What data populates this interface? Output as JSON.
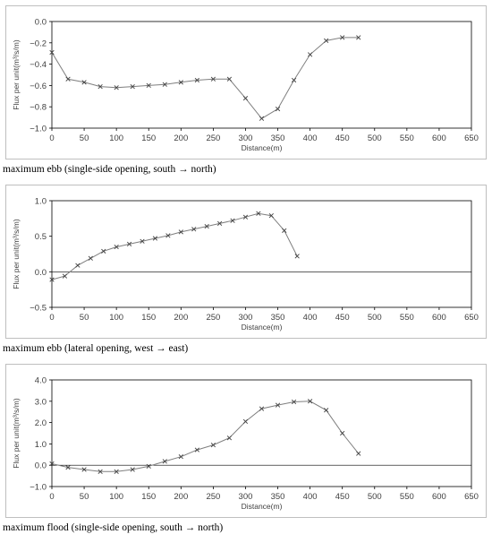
{
  "chart_data": [
    {
      "type": "line",
      "caption": "maximum ebb (single-side opening, south → north)",
      "xlabel": "Distance(m)",
      "ylabel": "Flux per unit(m³/s/m)",
      "xlim": [
        0,
        650
      ],
      "ylim": [
        -1.0,
        0.0
      ],
      "xticks": [
        "0",
        "50",
        "100",
        "150",
        "200",
        "250",
        "300",
        "350",
        "400",
        "450",
        "500",
        "550",
        "600",
        "650"
      ],
      "yticks": [
        "0.0",
        "−0.2",
        "−0.4",
        "−0.6",
        "−0.8",
        "−1.0"
      ],
      "grid": false,
      "marker": "x",
      "color": "#7f7f7f",
      "x": [
        0,
        25,
        50,
        75,
        100,
        125,
        150,
        175,
        200,
        225,
        250,
        275,
        300,
        325,
        350,
        375,
        400,
        425,
        450,
        475
      ],
      "y": [
        -0.29,
        -0.54,
        -0.57,
        -0.61,
        -0.62,
        -0.61,
        -0.6,
        -0.59,
        -0.57,
        -0.55,
        -0.54,
        -0.54,
        -0.72,
        -0.91,
        -0.82,
        -0.55,
        -0.31,
        -0.18,
        -0.15,
        -0.15
      ]
    },
    {
      "type": "line",
      "caption": "maximum ebb (lateral opening, west → east)",
      "xlabel": "Distance(m)",
      "ylabel": "Flux per unit(m³/s/m)",
      "xlim": [
        0,
        650
      ],
      "ylim": [
        -0.5,
        1.0
      ],
      "xticks": [
        "0",
        "50",
        "100",
        "150",
        "200",
        "250",
        "300",
        "350",
        "400",
        "450",
        "500",
        "550",
        "600",
        "650"
      ],
      "yticks": [
        "1.0",
        "0.5",
        "0.0",
        "−0.5"
      ],
      "grid": false,
      "marker": "x",
      "color": "#7f7f7f",
      "x": [
        0,
        20,
        40,
        60,
        80,
        100,
        120,
        140,
        160,
        180,
        200,
        220,
        240,
        260,
        280,
        300,
        320,
        340,
        360,
        380
      ],
      "y": [
        -0.11,
        -0.06,
        0.09,
        0.19,
        0.29,
        0.35,
        0.39,
        0.43,
        0.47,
        0.51,
        0.56,
        0.6,
        0.64,
        0.68,
        0.72,
        0.77,
        0.82,
        0.79,
        0.58,
        0.22
      ]
    },
    {
      "type": "line",
      "caption": "maximum flood (single-side opening, south → north)",
      "xlabel": "Distance(m)",
      "ylabel": "Flux per unit(m³/s/m)",
      "xlim": [
        0,
        650
      ],
      "ylim": [
        -1.0,
        4.0
      ],
      "xticks": [
        "0",
        "50",
        "100",
        "150",
        "200",
        "250",
        "300",
        "350",
        "400",
        "450",
        "500",
        "550",
        "600",
        "650"
      ],
      "yticks": [
        "4.0",
        "3.0",
        "2.0",
        "1.0",
        "0.0",
        "−1.0"
      ],
      "grid": false,
      "marker": "x",
      "color": "#7f7f7f",
      "x": [
        0,
        25,
        50,
        75,
        100,
        125,
        150,
        175,
        200,
        225,
        250,
        275,
        300,
        325,
        350,
        375,
        400,
        425,
        450,
        475
      ],
      "y": [
        0.07,
        -0.1,
        -0.2,
        -0.3,
        -0.3,
        -0.2,
        -0.05,
        0.18,
        0.4,
        0.72,
        0.95,
        1.28,
        2.05,
        2.65,
        2.82,
        2.97,
        3.0,
        2.58,
        1.5,
        0.55
      ]
    }
  ]
}
